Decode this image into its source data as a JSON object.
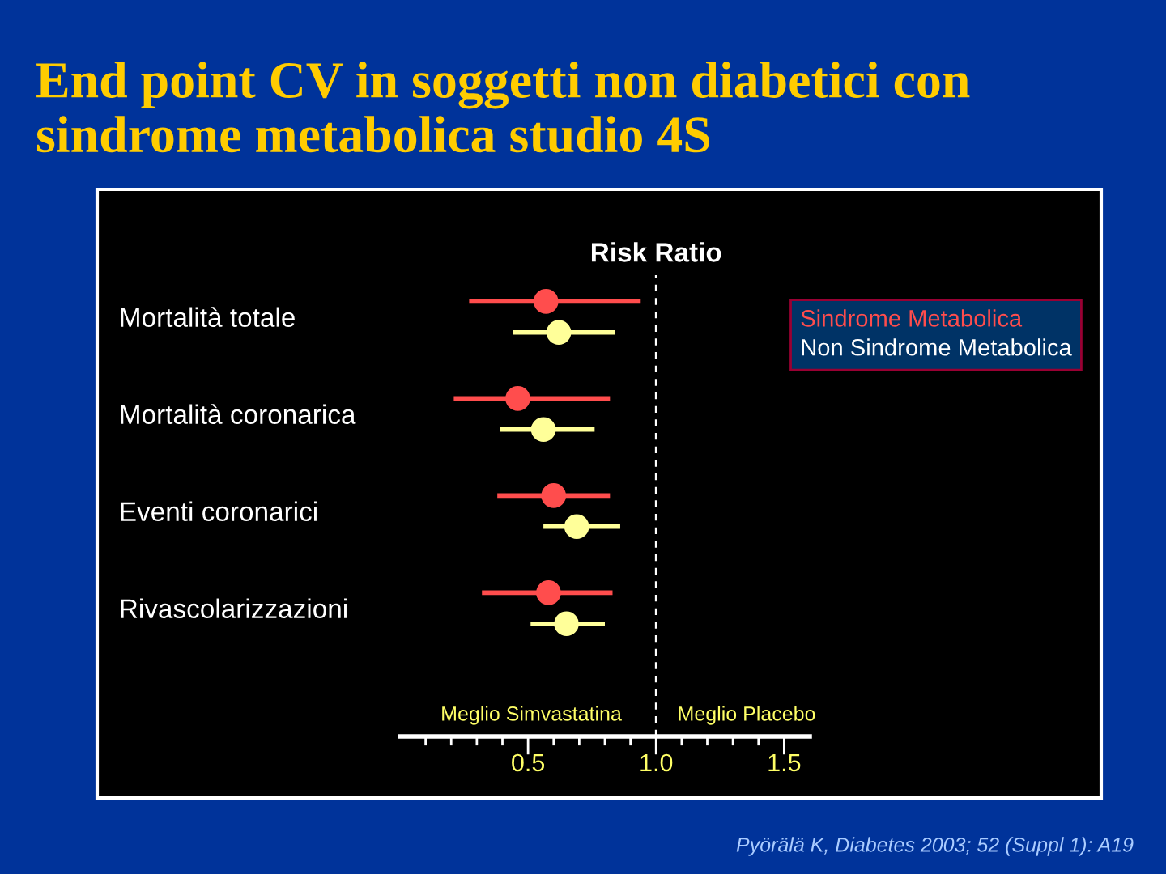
{
  "chart_data": {
    "type": "scatter",
    "orientation": "horizontal",
    "title": "End point CV in soggetti non diabetici con sindrome metabolica studio 4S",
    "subtitle": "Risk Ratio",
    "categories": [
      "Mortalità totale",
      "Mortalità coronarica",
      "Eventi coronarici",
      "Rivascolarizzazioni"
    ],
    "series": [
      {
        "name": "Sindrome Metabolica",
        "color": "#ff4d4d",
        "values": [
          0.57,
          0.46,
          0.6,
          0.58
        ],
        "errors": [
          [
            0.27,
            0.94
          ],
          [
            0.21,
            0.82
          ],
          [
            0.38,
            0.82
          ],
          [
            0.32,
            0.83
          ]
        ]
      },
      {
        "name": "Non Sindrome Metabolica",
        "color": "#ffff99",
        "values": [
          0.62,
          0.56,
          0.69,
          0.65
        ],
        "errors": [
          [
            0.44,
            0.84
          ],
          [
            0.39,
            0.76
          ],
          [
            0.56,
            0.86
          ],
          [
            0.51,
            0.8
          ]
        ]
      }
    ],
    "xlim": [
      0,
      1.6
    ],
    "xticks": [
      {
        "value": 0.1,
        "label": null
      },
      {
        "value": 0.2,
        "label": null
      },
      {
        "value": 0.3,
        "label": null
      },
      {
        "value": 0.4,
        "label": null
      },
      {
        "value": 0.5,
        "label": "0.5"
      },
      {
        "value": 0.6,
        "label": null
      },
      {
        "value": 0.7,
        "label": null
      },
      {
        "value": 0.8,
        "label": null
      },
      {
        "value": 0.9,
        "label": null
      },
      {
        "value": 1,
        "label": "1.0"
      },
      {
        "value": 1.1,
        "label": null
      },
      {
        "value": 1.2,
        "label": null
      },
      {
        "value": 1.3,
        "label": null
      },
      {
        "value": 1.4,
        "label": null
      },
      {
        "value": 1.5,
        "label": "1.5"
      }
    ],
    "ref_lines": [
      {
        "axis": "x",
        "value": 1,
        "color": "#ffffff",
        "line_style": "dashed"
      }
    ],
    "annotations": [
      "Meglio Simvastatina",
      "Meglio Placebo",
      "Pyörälä K, Diabetes 2003; 52 (Suppl 1): A19"
    ],
    "marker": "circle",
    "grid": false,
    "legend": "top right"
  }
}
